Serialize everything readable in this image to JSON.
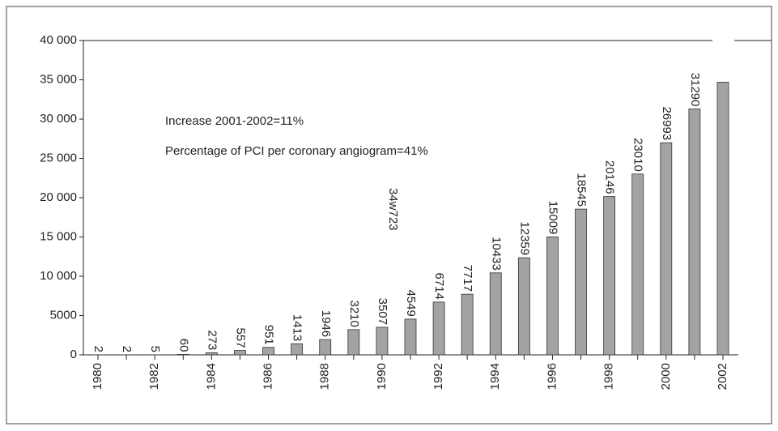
{
  "chart_data": {
    "type": "bar",
    "categories": [
      "1980",
      null,
      "1982",
      null,
      "1984",
      null,
      "1986",
      null,
      "1988",
      null,
      "1990",
      null,
      "1992",
      null,
      "1994",
      null,
      "1996",
      null,
      "1998",
      null,
      "2000",
      null,
      "2002"
    ],
    "values": [
      2,
      2,
      5,
      60,
      273,
      557,
      951,
      1413,
      1946,
      3210,
      3507,
      4549,
      6714,
      7717,
      10433,
      12359,
      15009,
      18545,
      20146,
      23010,
      26993,
      31290,
      34700
    ],
    "value_labels": [
      "2",
      "2",
      "5",
      "60",
      "273",
      "557",
      "951",
      "1413",
      "1946",
      "3210",
      "3507",
      "4549",
      "6714",
      "7717",
      "10433",
      "12359",
      "15009",
      "18545",
      "20146",
      "23010",
      "26993",
      "31290",
      null
    ],
    "color": "#a3a3a3",
    "ylim": [
      0,
      40000
    ],
    "yticks": [
      0,
      5000,
      {
        "value": 10000,
        "label": "10 000"
      },
      {
        "value": 15000,
        "label": "15 000"
      },
      {
        "value": 20000,
        "label": "20 000"
      },
      {
        "value": 25000,
        "label": "25 000"
      },
      {
        "value": 30000,
        "label": "30 000"
      },
      {
        "value": 35000,
        "label": "35 000"
      },
      {
        "value": 40000,
        "label": "40 000"
      }
    ],
    "annotations": [
      "Increase 2001-2002=11%",
      "Percentage of PCI per coronary angiogram=41%",
      "34w723"
    ]
  }
}
